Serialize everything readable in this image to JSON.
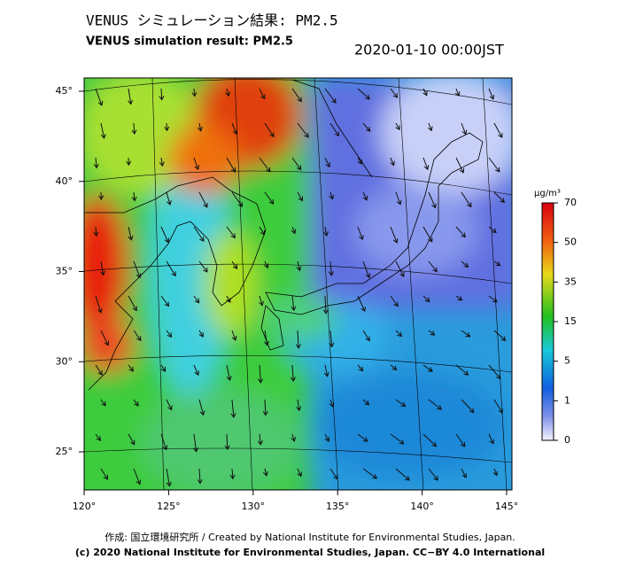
{
  "header": {
    "title": "VENUS シミュレーション結果: PM2.5",
    "subtitle": "VENUS simulation result: PM2.5",
    "timestamp": "2020-01-10 00:00JST"
  },
  "map": {
    "lat_labels": [
      "45°",
      "40°",
      "35°",
      "30°",
      "25°"
    ],
    "lon_labels": [
      "120°",
      "125°",
      "130°",
      "135°",
      "140°",
      "145°"
    ]
  },
  "colorbar": {
    "unit": "μg/m³",
    "ticks": [
      70,
      50,
      35,
      15,
      5,
      1,
      0
    ]
  },
  "footer": {
    "credit": "作成: 国立環境研究所 / Created by National Institute for Environmental Studies, Japan.",
    "license": "(c) 2020 National Institute for Environmental Studies, Japan. CC−BY 4.0 International"
  }
}
